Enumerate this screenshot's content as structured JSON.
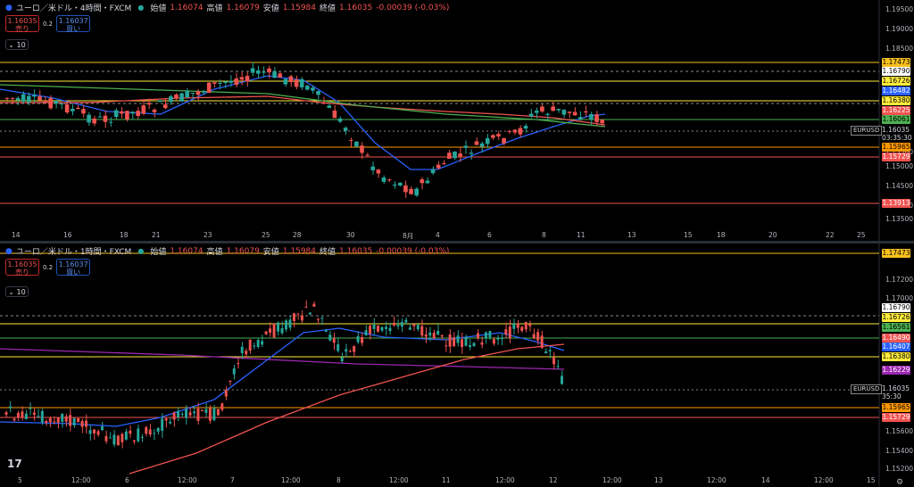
{
  "panes": [
    {
      "id": "4h",
      "symbol": "ユーロ／米ドル・4時間・FXCM",
      "ohlc": {
        "open_label": "始値",
        "open": "1.16074",
        "high_label": "高値",
        "high": "1.16079",
        "low_label": "安値",
        "low": "1.15984",
        "close_label": "終値",
        "close": "1.16035",
        "change": "-0.00039 (-0.03%)"
      },
      "sell_price": "1.16035",
      "sell_label": "売り",
      "buy_price": "1.16037",
      "buy_label": "買い",
      "spread": "0.2",
      "collapse_count": "10",
      "price_ticks": [
        "1.19500",
        "1.19000",
        "1.18500",
        "1.15500",
        "1.15000",
        "1.14500",
        "1.14000",
        "1.13500"
      ],
      "tags": [
        {
          "text": "1.17473",
          "color": "#f7c01d"
        },
        {
          "text": "1.16790",
          "color": "#ffffff"
        },
        {
          "text": "1.16726",
          "color": "#ffeb3b"
        },
        {
          "text": "1.16482",
          "color": "#2962ff"
        },
        {
          "text": "1.16380",
          "color": "#ffeb3b"
        },
        {
          "text": "1.16225",
          "color": "#ef5350"
        },
        {
          "text": "1.16061",
          "color": "#4caf50"
        },
        {
          "text": "1.15965",
          "color": "#ff9800"
        },
        {
          "text": "1.15729",
          "color": "#ef5350"
        },
        {
          "text": "1.13913",
          "color": "#ef5350"
        }
      ],
      "symbol_box": "EURUSD",
      "current_price": "1.16035",
      "countdown": "03:35:30",
      "x_labels": [
        "14",
        "16",
        "18",
        "21",
        "23",
        "25",
        "28",
        "30",
        "8月",
        "4",
        "6",
        "8",
        "11",
        "13",
        "15",
        "18",
        "20",
        "22",
        "25"
      ]
    },
    {
      "id": "1h",
      "symbol": "ユーロ／米ドル・1時間・FXCM",
      "ohlc": {
        "open_label": "始値",
        "open": "1.16074",
        "high_label": "高値",
        "high": "1.16079",
        "low_label": "安値",
        "low": "1.15984",
        "close_label": "終値",
        "close": "1.16035",
        "change": "-0.00039 (-0.03%)"
      },
      "sell_price": "1.16035",
      "sell_label": "売り",
      "buy_price": "1.16037",
      "buy_label": "買い",
      "spread": "0.2",
      "collapse_count": "10",
      "price_ticks": [
        "1.17200",
        "1.17000",
        "1.15600",
        "1.15400",
        "1.15200"
      ],
      "tags": [
        {
          "text": "1.17473",
          "color": "#f7c01d"
        },
        {
          "text": "1.16790",
          "color": "#ffffff"
        },
        {
          "text": "1.16726",
          "color": "#ffeb3b"
        },
        {
          "text": "1.16561",
          "color": "#4caf50"
        },
        {
          "text": "1.16490",
          "color": "#ef5350"
        },
        {
          "text": "1.16407",
          "color": "#2962ff"
        },
        {
          "text": "1.16380",
          "color": "#ffeb3b"
        },
        {
          "text": "1.16229",
          "color": "#9c27b0"
        },
        {
          "text": "1.15965",
          "color": "#ff9800"
        },
        {
          "text": "1.15729",
          "color": "#ef5350"
        }
      ],
      "symbol_box": "EURUSD",
      "current_price": "1.16035",
      "countdown": "35:30",
      "x_labels": [
        "5",
        "12:00",
        "6",
        "12:00",
        "7",
        "12:00",
        "8",
        "12:00",
        "11",
        "12:00",
        "12",
        "12:00",
        "13",
        "12:00",
        "14",
        "12:00",
        "15"
      ]
    }
  ],
  "branding": {
    "logo_text": "17"
  }
}
